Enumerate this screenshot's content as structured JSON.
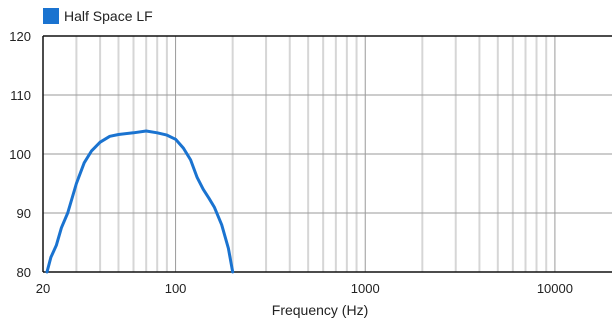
{
  "chart_data": {
    "type": "line",
    "xlabel": "Frequency (Hz)",
    "ylabel": "",
    "x_scale": "log",
    "xlim": [
      20,
      20000
    ],
    "ylim": [
      80,
      120
    ],
    "x_ticks": [
      20,
      100,
      1000,
      10000
    ],
    "x_tick_labels": [
      "20",
      "100",
      "1000",
      "10000"
    ],
    "y_ticks": [
      80,
      90,
      100,
      110,
      120
    ],
    "y_tick_labels": [
      "80",
      "90",
      "100",
      "110",
      "120"
    ],
    "grid": true,
    "legend_position": "top-left",
    "series": [
      {
        "name": "Half Space LF",
        "color": "#1a73d0",
        "x": [
          21,
          22,
          23.5,
          25,
          27,
          30,
          33,
          36,
          40,
          45,
          50,
          60,
          70,
          80,
          90,
          100,
          110,
          120,
          130,
          140,
          150,
          160,
          175,
          190,
          200
        ],
        "y": [
          80,
          82.5,
          84.5,
          87.5,
          90,
          95,
          98.5,
          100.5,
          102,
          103,
          103.3,
          103.6,
          103.9,
          103.6,
          103.2,
          102.5,
          101,
          99,
          96,
          94,
          92.5,
          91,
          88,
          84,
          80
        ]
      }
    ]
  }
}
